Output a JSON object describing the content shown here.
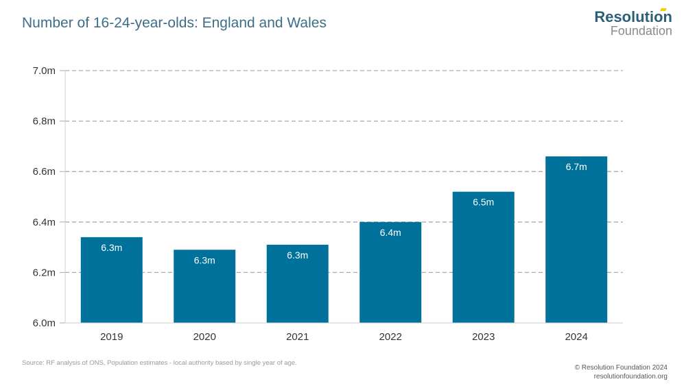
{
  "header": {
    "title": "Number of 16-24-year-olds: England and Wales"
  },
  "logo": {
    "line1": "Resolution",
    "line2": "Foundation"
  },
  "chart_data": {
    "type": "bar",
    "title": "Number of 16-24-year-olds: England and Wales",
    "categories": [
      "2019",
      "2020",
      "2021",
      "2022",
      "2023",
      "2024"
    ],
    "values": [
      6.34,
      6.29,
      6.31,
      6.4,
      6.52,
      6.66
    ],
    "data_labels": [
      "6.3m",
      "6.3m",
      "6.3m",
      "6.4m",
      "6.5m",
      "6.7m"
    ],
    "ylim": [
      6.0,
      7.0
    ],
    "yticks": [
      "6.0m",
      "6.2m",
      "6.4m",
      "6.6m",
      "6.8m",
      "7.0m"
    ],
    "grid": true,
    "bar_color": "#00719b",
    "xlabel": "",
    "ylabel": ""
  },
  "footer": {
    "source": "Source: RF analysis of ONS, Population estimates - local authority based by single year of age.",
    "copyright": "© Resolution Foundation 2024",
    "url": "resolutionfoundation.org"
  }
}
